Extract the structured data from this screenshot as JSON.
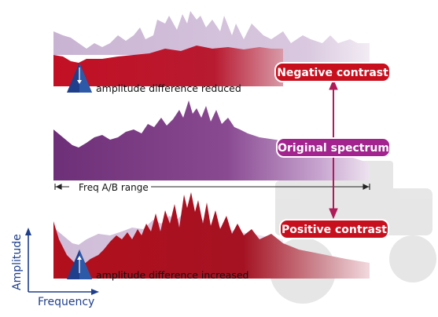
{
  "labels": {
    "negative_contrast": "Negative contrast",
    "original_spectrum": "Original spectrum",
    "positive_contrast": "Positive contrast",
    "amplitude_reduced": "amplitude difference reduced",
    "amplitude_increased": "amplitude difference increased",
    "freq_range": "Freq A/B range",
    "axis_y": "Amplitude",
    "axis_x": "Frequency"
  },
  "colors": {
    "negative_red": "#c8102e",
    "original_purple": "#8a3a8f",
    "ghost_lilac": "#cdb6d6",
    "positive_red": "#b5121b",
    "axis_blue": "#1f3f8c",
    "pill_purple": "#a3238f",
    "pill_red": "#c80f1e"
  },
  "icons": {
    "reduced": "arrow-down-icon",
    "increased": "arrow-up-icon",
    "connector": "double-arrow-vertical-icon"
  }
}
